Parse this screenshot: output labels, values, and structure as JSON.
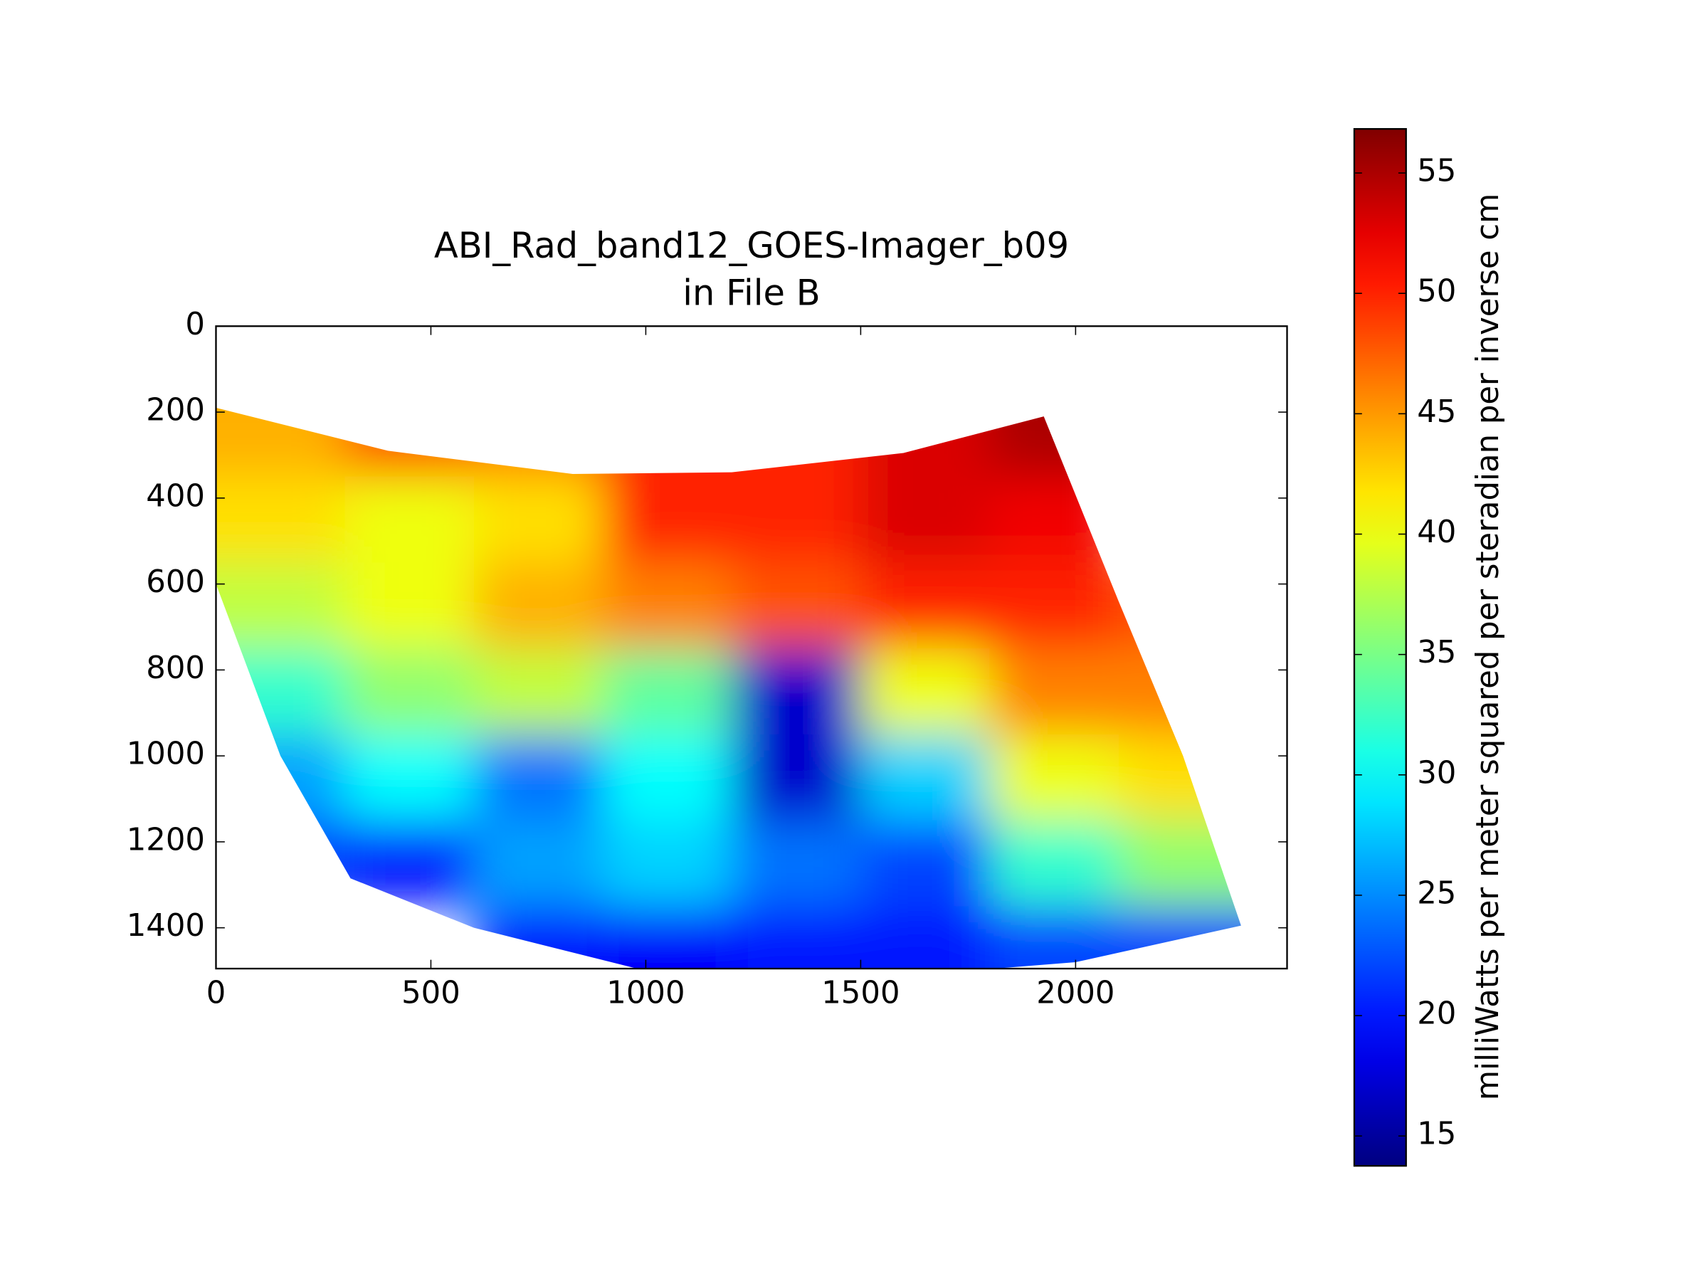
{
  "chart_data": {
    "type": "heatmap",
    "title": "ABI_Rad_band12_GOES-Imager_b09",
    "subtitle": "in File B",
    "colormap": "jet",
    "x": [
      150,
      450,
      750,
      1050,
      1350,
      1650,
      1950,
      2250
    ],
    "y": [
      250,
      450,
      650,
      850,
      1050,
      1250,
      1450
    ],
    "z": [
      [
        44,
        48,
        46,
        50,
        50,
        53,
        55,
        null
      ],
      [
        42,
        40,
        42,
        50,
        50,
        53,
        52,
        null
      ],
      [
        38,
        40,
        44,
        46,
        48,
        50,
        50,
        48
      ],
      [
        32,
        36,
        38,
        34,
        17,
        40,
        46,
        46
      ],
      [
        26,
        30,
        24,
        30,
        17,
        28,
        40,
        42
      ],
      [
        22,
        20,
        26,
        28,
        24,
        22,
        32,
        36
      ],
      [
        null,
        null,
        20,
        19,
        20,
        20,
        22,
        22
      ]
    ],
    "footprint": [
      [
        0,
        190
      ],
      [
        400,
        290
      ],
      [
        830,
        344
      ],
      [
        1200,
        340
      ],
      [
        1600,
        295
      ],
      [
        1926,
        210
      ],
      [
        2100,
        640
      ],
      [
        2250,
        1000
      ],
      [
        2385,
        1395
      ],
      [
        2000,
        1480
      ],
      [
        1500,
        1520
      ],
      [
        1000,
        1500
      ],
      [
        600,
        1400
      ],
      [
        313,
        1285
      ],
      [
        150,
        1000
      ],
      [
        0,
        600
      ]
    ],
    "xlim": [
      0,
      2492
    ],
    "ylim": [
      1495,
      0
    ],
    "xticks": [
      0,
      500,
      1000,
      1500,
      2000
    ],
    "yticks": [
      0,
      200,
      400,
      600,
      800,
      1000,
      1200,
      1400
    ],
    "colorbar": {
      "label": "milliWatts per meter squared per steradian per inverse cm",
      "lim": [
        13.76,
        56.83
      ],
      "ticks": [
        15,
        20,
        25,
        30,
        35,
        40,
        45,
        50,
        55
      ]
    }
  }
}
